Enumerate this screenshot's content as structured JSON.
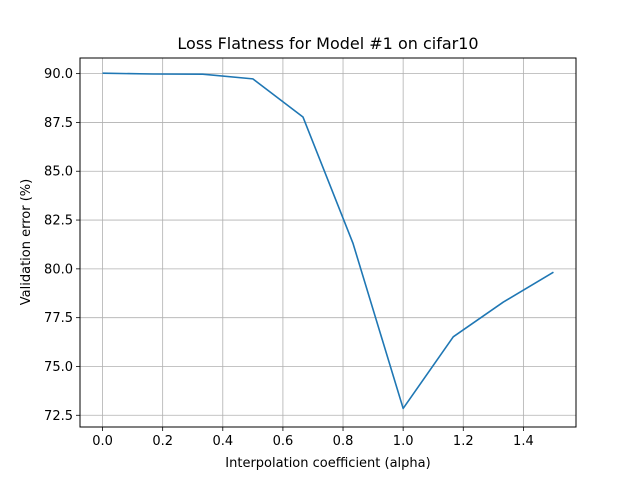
{
  "chart_data": {
    "type": "line",
    "title": "Loss Flatness for Model #1 on cifar10",
    "xlabel": "Interpolation coefficient (alpha)",
    "ylabel": "Validation error (%)",
    "xlim": [
      -0.075,
      1.575
    ],
    "ylim": [
      71.9,
      90.8
    ],
    "xticks": [
      0.0,
      0.2,
      0.4,
      0.6,
      0.8,
      1.0,
      1.2,
      1.4
    ],
    "xtick_labels": [
      "0.0",
      "0.2",
      "0.4",
      "0.6",
      "0.8",
      "1.0",
      "1.2",
      "1.4"
    ],
    "yticks": [
      72.5,
      75.0,
      77.5,
      80.0,
      82.5,
      85.0,
      87.5,
      90.0
    ],
    "ytick_labels": [
      "72.5",
      "75.0",
      "77.5",
      "80.0",
      "82.5",
      "85.0",
      "87.5",
      "90.0"
    ],
    "grid": true,
    "series": [
      {
        "color": "#1f77b4",
        "x": [
          0.0,
          0.1667,
          0.3333,
          0.5,
          0.6667,
          0.8333,
          1.0,
          1.1667,
          1.3333,
          1.5
        ],
        "y": [
          90.02,
          89.98,
          89.97,
          89.73,
          87.78,
          81.3,
          72.85,
          76.52,
          78.3,
          79.83
        ]
      }
    ]
  }
}
